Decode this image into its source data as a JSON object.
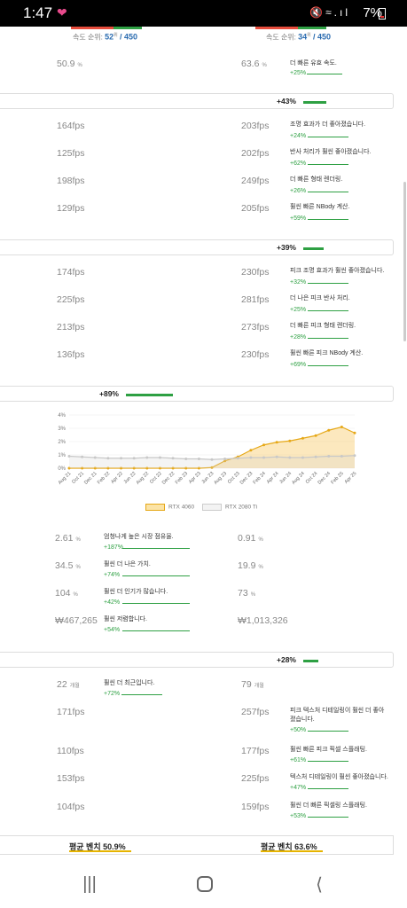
{
  "status": {
    "time": "1:47",
    "battery": "7%"
  },
  "rank": {
    "left_label": "속도 순위:",
    "left_rank": "52",
    "left_sup": "위",
    "left_total": "/ 450",
    "right_label": "속도 순위:",
    "right_rank": "34",
    "right_sup": "위",
    "right_total": "/ 450"
  },
  "top_row": {
    "left": "50.9",
    "left_unit": "%",
    "right": "63.6",
    "right_unit": "%",
    "desc": "더 빠른 유효 속도.",
    "pct": "+25%"
  },
  "section1": {
    "label": "+43%",
    "fill": 0.43
  },
  "section1_rows": [
    {
      "left": "164fps",
      "right": "203fps",
      "desc": "조명 효과가 더 좋아졌습니다.",
      "pct": "+24%"
    },
    {
      "left": "125fps",
      "right": "202fps",
      "desc": "반사 처리가 훨씬 좋아졌습니다.",
      "pct": "+62%"
    },
    {
      "left": "198fps",
      "right": "249fps",
      "desc": "더 빠른 형태 렌더링.",
      "pct": "+26%"
    },
    {
      "left": "129fps",
      "right": "205fps",
      "desc": "훨씬 빠른 NBody 계산.",
      "pct": "+59%"
    }
  ],
  "section2": {
    "label": "+39%",
    "fill": 0.39
  },
  "section2_rows": [
    {
      "left": "174fps",
      "right": "230fps",
      "desc": "피크 조명 효과가 훨씬 좋아졌습니다.",
      "pct": "+32%"
    },
    {
      "left": "225fps",
      "right": "281fps",
      "desc": "더 나은 피크 반사 처리.",
      "pct": "+25%"
    },
    {
      "left": "213fps",
      "right": "273fps",
      "desc": "더 빠른 피크 형태 렌더링.",
      "pct": "+28%"
    },
    {
      "left": "136fps",
      "right": "230fps",
      "desc": "훨씬 빠른 피크 NBody 계산.",
      "pct": "+69%"
    }
  ],
  "section3": {
    "label": "+89%",
    "fill": 0.89
  },
  "chart_data": {
    "type": "area",
    "x": [
      "Aug 21",
      "Oct 21",
      "Dec 21",
      "Feb 22",
      "Apr 22",
      "Jun 22",
      "Aug 22",
      "Oct 22",
      "Dec 22",
      "Feb 23",
      "Apr 23",
      "Jun 23",
      "Aug 23",
      "Oct 23",
      "Dec 23",
      "Feb 24",
      "Apr 24",
      "Jun 24",
      "Aug 24",
      "Oct 24",
      "Dec 24",
      "Feb 25",
      "Apr 25"
    ],
    "yticks": [
      "0%",
      "1%",
      "2%",
      "3%",
      "4%"
    ],
    "ylim": [
      0,
      4
    ],
    "series": [
      {
        "name": "RTX 4060",
        "color": "#e6a817",
        "values": [
          0,
          0,
          0,
          0,
          0,
          0,
          0,
          0,
          0,
          0,
          0,
          0.05,
          0.55,
          0.85,
          1.35,
          1.75,
          1.95,
          2.05,
          2.25,
          2.45,
          2.85,
          3.1,
          2.65
        ]
      },
      {
        "name": "RTX 2080 Ti",
        "color": "#c8c8c8",
        "values": [
          0.9,
          0.85,
          0.8,
          0.75,
          0.75,
          0.75,
          0.8,
          0.8,
          0.75,
          0.7,
          0.7,
          0.65,
          0.7,
          0.75,
          0.8,
          0.8,
          0.85,
          0.8,
          0.8,
          0.85,
          0.9,
          0.9,
          0.95
        ]
      }
    ]
  },
  "market_rows": [
    {
      "left": "2.61",
      "left_unit": "%",
      "right": "0.91",
      "right_unit": "%",
      "desc": "엄청나게 높은 시장 점유율.",
      "pct": "+187%"
    },
    {
      "left": "34.5",
      "left_unit": "%",
      "right": "19.9",
      "right_unit": "%",
      "desc": "훨씬 더 나은 가치.",
      "pct": "+74%"
    },
    {
      "left": "104",
      "left_unit": "%",
      "right": "73",
      "right_unit": "%",
      "desc": "훨씬 더 인기가 많습니다.",
      "pct": "+42%"
    },
    {
      "left": "₩467,265",
      "left_unit": "",
      "right": "₩1,013,326",
      "right_unit": "",
      "desc": "훨씬 저렴합니다.",
      "pct": "+54%"
    }
  ],
  "section4": {
    "label": "+28%",
    "fill": 0.28
  },
  "section4_rows": [
    {
      "left": "22",
      "left_unit": "개월",
      "right": "79",
      "right_unit": "개월",
      "desc": "훨씬 더 최근입니다.",
      "pct": "+72%"
    },
    {
      "left": "171fps",
      "left_unit": "",
      "right": "257fps",
      "right_unit": "",
      "desc": "피크 텍스처 디테일링이 훨씬 더 좋아졌습니다.",
      "pct": "+50%"
    },
    {
      "left": "110fps",
      "left_unit": "",
      "right": "177fps",
      "right_unit": "",
      "desc": "훨씬 빠른 피크 픽셀 스플래팅.",
      "pct": "+61%"
    },
    {
      "left": "153fps",
      "left_unit": "",
      "right": "225fps",
      "right_unit": "",
      "desc": "텍스처 디테일링이 훨씬 좋아졌습니다.",
      "pct": "+47%"
    },
    {
      "left": "104fps",
      "left_unit": "",
      "right": "159fps",
      "right_unit": "",
      "desc": "훨씬 더 빠른 픽셀링 스플래팅.",
      "pct": "+53%"
    }
  ],
  "summary": {
    "left": "평균 벤치 50.9%",
    "right": "평균 벤치 63.6%"
  }
}
